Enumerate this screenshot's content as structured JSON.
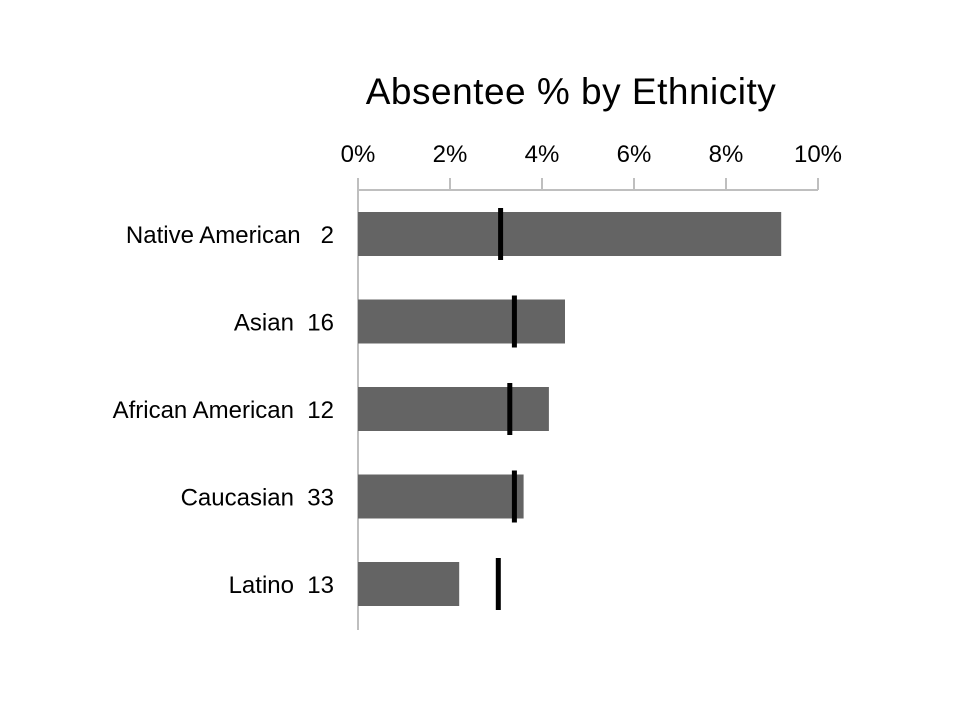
{
  "chart_data": {
    "type": "bar",
    "orientation": "horizontal",
    "title": "Absentee % by Ethnicity",
    "categories": [
      "Native American   2",
      "Asian  16",
      "African American  12",
      "Caucasian  33",
      "Latino  13"
    ],
    "series": [
      {
        "values": [
          9.2,
          4.5,
          4.15,
          3.6,
          2.2
        ]
      },
      {
        "type": "marker",
        "values": [
          3.1,
          3.4,
          3.3,
          3.4,
          3.05
        ]
      }
    ],
    "xaxis": {
      "position": "top",
      "ticks": [
        "0%",
        "2%",
        "4%",
        "6%",
        "8%",
        "10%"
      ],
      "tick_values": [
        0,
        2,
        4,
        6,
        8,
        10
      ]
    },
    "xlim": [
      0,
      10
    ],
    "grid": false,
    "colors": {
      "bar": "#646464",
      "marker": "#000000",
      "axis": "#bfbfbf"
    }
  }
}
